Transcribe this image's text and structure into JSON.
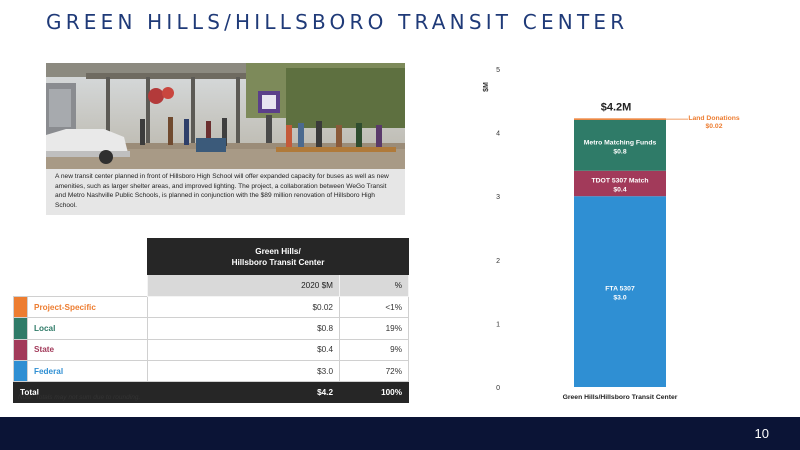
{
  "title": "GREEN HILLS/HILLSBORO TRANSIT CENTER",
  "photo": {
    "caption": "A new transit center planned in front of Hillsboro High School will offer expanded capacity for buses as well as new amenities, such as larger shelter areas, and improved lighting. The project, a collaboration between WeGo Transit and Metro Nashville Public Schools, is planned in conjunction with the $89 million renovation of Hillsboro High School."
  },
  "table": {
    "header_title": "Green Hills/\nHillsboro Transit Center",
    "col_amount": "2020 $M",
    "col_pct": "%",
    "rows": [
      {
        "label": "Project-Specific",
        "amount": "$0.02",
        "pct": "<1%",
        "color": "#ed7d31"
      },
      {
        "label": "Local",
        "amount": "$0.8",
        "pct": "19%",
        "color": "#2f7b68"
      },
      {
        "label": "State",
        "amount": "$0.4",
        "pct": "9%",
        "color": "#a23a5a"
      },
      {
        "label": "Federal",
        "amount": "$3.0",
        "pct": "72%",
        "color": "#2f8fd3"
      }
    ],
    "total": {
      "label": "Total",
      "amount": "$4.2",
      "pct": "100%"
    }
  },
  "note": "Note: Totals may not sum due to rounding.",
  "chart_data": {
    "type": "bar",
    "stacked": true,
    "categories": [
      "Green Hills/Hillsboro Transit Center"
    ],
    "ylabel": "$M",
    "ylim": [
      0,
      5
    ],
    "yticks": [
      "0",
      "1",
      "2",
      "3",
      "4",
      "5"
    ],
    "total_label": "$4.2M",
    "series": [
      {
        "name": "FTA 5307",
        "value_label": "$3.0",
        "values": [
          3.0
        ],
        "color": "#2f8fd3",
        "text_color": "#ffffff"
      },
      {
        "name": "TDOT 5307 Match",
        "value_label": "$0.4",
        "values": [
          0.4
        ],
        "color": "#a23a5a",
        "text_color": "#ffffff"
      },
      {
        "name": "Metro Matching Funds",
        "value_label": "$0.8",
        "values": [
          0.8
        ],
        "color": "#2f7b68",
        "text_color": "#ffffff"
      },
      {
        "name": "Land Donations",
        "value_label": "$0.02",
        "values": [
          0.02
        ],
        "color": "#ed7d31",
        "text_color": "#ed7d31"
      }
    ]
  },
  "footer": {
    "page_number": "10"
  }
}
